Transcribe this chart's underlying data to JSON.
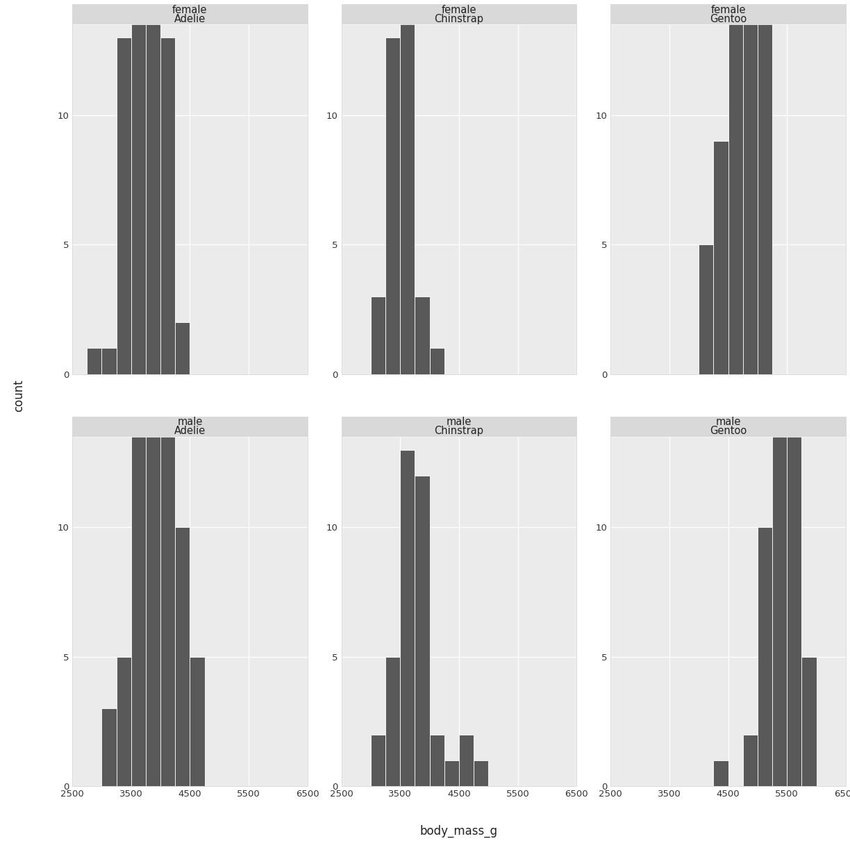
{
  "xlabel": "body_mass_g",
  "ylabel": "count",
  "bar_color": "#595959",
  "panel_background": "#EBEBEB",
  "strip_background": "#D9D9D9",
  "outer_background": "#E0E0E0",
  "grid_color": "#FFFFFF",
  "raw_data": {
    "female_Adelie": [
      3400,
      3400,
      3400,
      3400,
      3400,
      3350,
      3350,
      3350,
      3650,
      3650,
      3650,
      3650,
      3650,
      3400,
      3400,
      3500,
      3500,
      3500,
      3500,
      3500,
      3750,
      3750,
      3750,
      3750,
      3800,
      3800,
      3800,
      3800,
      3650,
      3650,
      3650,
      3800,
      3800,
      3800,
      3650,
      3650,
      3650,
      3800,
      3800,
      3800,
      4050,
      4050,
      4050,
      4050,
      4050,
      3050,
      2900,
      4150,
      4150,
      4150,
      4000,
      4000,
      4000,
      4000,
      4000,
      4300,
      4300,
      3700,
      3700,
      3700,
      3700,
      3700,
      3550,
      3550,
      3550,
      3550,
      3300,
      3400,
      3400,
      3500,
      3500,
      3700
    ],
    "female_Chinstrap": [
      3500,
      3600,
      3200,
      3500,
      3425,
      3325,
      3400,
      3600,
      3900,
      3800,
      3300,
      3700,
      3450,
      4150,
      3400,
      3500,
      3425,
      3175,
      3400,
      3600,
      3475,
      3050,
      3525,
      3675,
      3450,
      3575,
      3600,
      3500,
      3650,
      3750,
      3300,
      3450,
      3600,
      3550,
      3500,
      3675,
      3475
    ],
    "female_Gentoo": [
      4500,
      4700,
      4450,
      4400,
      4150,
      4650,
      4550,
      4500,
      5050,
      4200,
      4800,
      4400,
      4600,
      5200,
      4700,
      4650,
      4250,
      4800,
      4400,
      4600,
      5050,
      4450,
      4500,
      4750,
      4900,
      4850,
      4200,
      4500,
      5050,
      5100,
      4500,
      5000,
      5050,
      4450,
      4750,
      4850,
      5000,
      4800,
      5200,
      5100,
      5000,
      4650,
      4150,
      4600,
      4800,
      4550,
      4850,
      5000,
      4550,
      4750,
      4850,
      5000,
      5100,
      4400,
      4300,
      4500,
      5050,
      4700,
      5100,
      4900,
      4700,
      5050,
      4750,
      4900,
      4600,
      5100,
      4150,
      4600,
      4900
    ],
    "male_Adelie": [
      3750,
      3800,
      3250,
      3450,
      3600,
      3700,
      3550,
      3200,
      3150,
      3950,
      4675,
      4250,
      3300,
      3700,
      3775,
      3700,
      4050,
      3575,
      4050,
      3200,
      3800,
      3950,
      3800,
      3800,
      3550,
      3900,
      3950,
      3900,
      3900,
      3800,
      3650,
      3650,
      4000,
      4150,
      4200,
      3900,
      3550,
      4000,
      3800,
      4300,
      4600,
      3700,
      4050,
      4450,
      4350,
      4150,
      4100,
      3800,
      4550,
      3800,
      3800,
      3850,
      3950,
      3800,
      4200,
      4150,
      3700,
      3900,
      4050,
      3900,
      3650,
      3975,
      4725,
      4475,
      3700,
      4000,
      4600,
      3425,
      3450,
      3825,
      3500,
      4425,
      4100,
      4250,
      4050,
      4350,
      4000,
      4350,
      3600,
      4200,
      4400,
      4200
    ],
    "male_Chinstrap": [
      3950,
      3250,
      3550,
      3500,
      3850,
      3950,
      3650,
      3700,
      4650,
      3200,
      3800,
      3800,
      3675,
      4300,
      3575,
      3250,
      3525,
      3950,
      3450,
      3650,
      3625,
      3850,
      3475,
      3800,
      3600,
      4600,
      3050,
      3900,
      3500,
      3900,
      3850,
      4750,
      3400,
      3550,
      3700,
      4000,
      3775,
      4100
    ],
    "male_Gentoo": [
      5500,
      5700,
      5400,
      5350,
      5700,
      5400,
      5750,
      5000,
      4250,
      5350,
      5250,
      5300,
      5500,
      5600,
      5300,
      5100,
      5200,
      4900,
      5300,
      5200,
      5700,
      5300,
      5100,
      5650,
      5800,
      5200,
      5600,
      5400,
      5800,
      5700,
      5350,
      5400,
      5600,
      5900,
      5700,
      5300,
      5400,
      5600,
      5050,
      5700,
      5100,
      5600,
      5700,
      5600,
      5000,
      5200,
      5650,
      5350,
      5700,
      5550,
      5400,
      4750,
      5600,
      5300,
      5550,
      5350,
      5700,
      5650,
      5750
    ]
  },
  "xlim_all": [
    2500,
    6500
  ],
  "ylim_all": [
    0,
    13.5
  ],
  "yticks": [
    0,
    5,
    10
  ],
  "xticks": [
    2500,
    3500,
    4500,
    5500,
    6500
  ],
  "xtick_labels": [
    "2500",
    "3500",
    "4500",
    "5500",
    "6500"
  ],
  "panels": [
    {
      "sex": "female",
      "species": "Adelie",
      "key": "female_Adelie"
    },
    {
      "sex": "female",
      "species": "Chinstrap",
      "key": "female_Chinstrap"
    },
    {
      "sex": "female",
      "species": "Gentoo",
      "key": "female_Gentoo"
    },
    {
      "sex": "male",
      "species": "Adelie",
      "key": "male_Adelie"
    },
    {
      "sex": "male",
      "species": "Chinstrap",
      "key": "male_Chinstrap"
    },
    {
      "sex": "male",
      "species": "Gentoo",
      "key": "male_Gentoo"
    }
  ]
}
